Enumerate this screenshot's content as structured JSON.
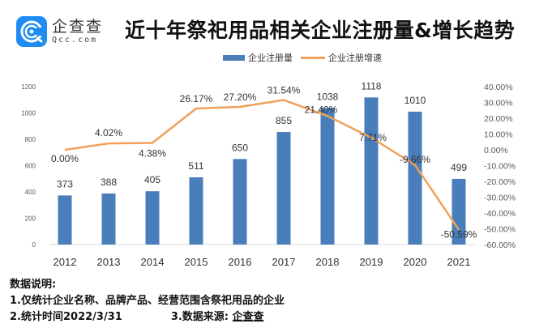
{
  "logo": {
    "cn": "企查查",
    "en": "Qcc.com",
    "color": "#1e8cf0"
  },
  "title": "近十年祭祀用品相关企业注册量&增长趋势",
  "legend": {
    "bar_label": "企业注册量",
    "line_label": "企业注册增速"
  },
  "chart_data": {
    "type": "bar+line",
    "title": "近十年祭祀用品相关企业注册量&增长趋势",
    "categories": [
      "2012",
      "2013",
      "2014",
      "2015",
      "2016",
      "2017",
      "2018",
      "2019",
      "2020",
      "2021"
    ],
    "series": [
      {
        "name": "企业注册量",
        "type": "bar",
        "axis": "left",
        "color": "#4a7ebb",
        "values": [
          373,
          388,
          405,
          511,
          650,
          855,
          1038,
          1118,
          1010,
          499
        ],
        "labels": [
          "373",
          "388",
          "405",
          "511",
          "650",
          "855",
          "1038",
          "1118",
          "1010",
          "499"
        ]
      },
      {
        "name": "企业注册增速",
        "type": "line",
        "axis": "right",
        "color": "#f0a05a",
        "values": [
          0.0,
          4.02,
          4.38,
          26.17,
          27.2,
          31.54,
          21.4,
          7.71,
          -9.66,
          -50.59
        ],
        "labels": [
          "0.00%",
          "4.02%",
          "4.38%",
          "26.17%",
          "27.20%",
          "31.54%",
          "21.40%",
          "7.71%",
          "-9.66%",
          "-50.59%"
        ]
      }
    ],
    "y_left": {
      "ylim": [
        0,
        1200
      ],
      "ticks": [
        "0",
        "200",
        "400",
        "600",
        "800",
        "1000",
        "1200"
      ],
      "tick_values": [
        0,
        200,
        400,
        600,
        800,
        1000,
        1200
      ]
    },
    "y_right": {
      "ylim": [
        -60,
        40
      ],
      "ticks": [
        "-60.00%",
        "-50.00%",
        "-40.00%",
        "-30.00%",
        "-20.00%",
        "-10.00%",
        "0.00%",
        "10.00%",
        "20.00%",
        "30.00%",
        "40.00%"
      ],
      "tick_values": [
        -60,
        -50,
        -40,
        -30,
        -20,
        -10,
        0,
        10,
        20,
        30,
        40
      ]
    },
    "xlabel": "",
    "ylabel": "",
    "grid": false,
    "legend_position": "top-center"
  },
  "notes": {
    "heading": "数据说明:",
    "line1": "1.仅统计企业名称、品牌产品、经营范围含祭祀用品的企业",
    "line2": "2.统计时间2022/3/31",
    "line3_prefix": "3.数据来源:",
    "line3_source": "企查查"
  }
}
